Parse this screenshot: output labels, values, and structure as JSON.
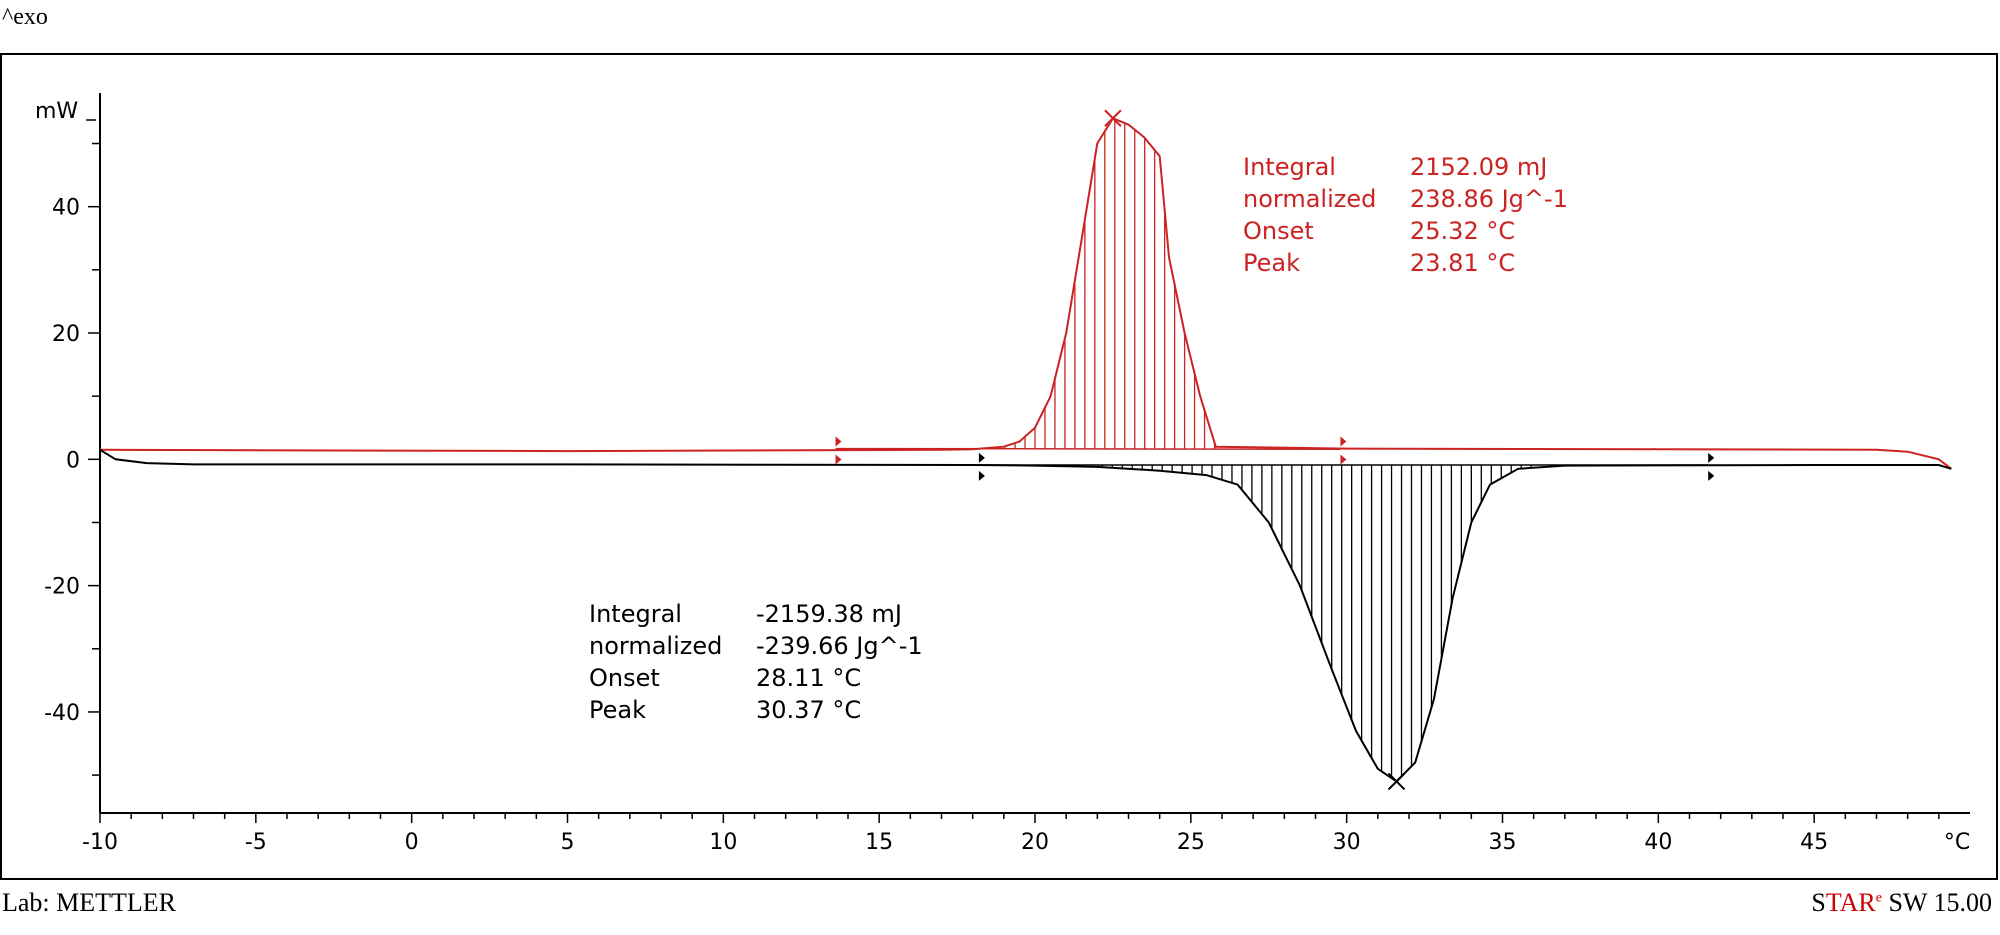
{
  "header": {
    "exo_label": "^exo"
  },
  "footer": {
    "lab": "Lab: METTLER",
    "software_s": "S",
    "software_tar": "TAR",
    "software_e": "e",
    "software_rest": " SW 15.00"
  },
  "colors": {
    "heating": "#cc2222",
    "cooling": "#000000",
    "axis": "#000000"
  },
  "chart_data": {
    "type": "line",
    "title": "",
    "xlabel": "°C",
    "ylabel": "mW",
    "xlim": [
      -10,
      50
    ],
    "ylim": [
      -56,
      58
    ],
    "x_ticks": [
      -10,
      -5,
      0,
      5,
      10,
      15,
      20,
      25,
      30,
      35,
      40,
      45
    ],
    "x_tick_labels": [
      "-10",
      "-5",
      "0",
      "5",
      "10",
      "15",
      "20",
      "25",
      "30",
      "35",
      "40",
      "45"
    ],
    "y_ticks": [
      40,
      20,
      0,
      -20,
      -40
    ],
    "y_tick_labels": [
      "40",
      "20",
      "0",
      "-20",
      "-40"
    ],
    "series": [
      {
        "color": "#cc2222",
        "points": [
          [
            -10,
            1.5
          ],
          [
            5,
            1.3
          ],
          [
            17,
            1.5
          ],
          [
            18,
            1.6
          ],
          [
            19,
            2
          ],
          [
            19.5,
            2.8
          ],
          [
            20,
            5
          ],
          [
            20.5,
            10
          ],
          [
            21,
            20
          ],
          [
            21.5,
            35
          ],
          [
            22,
            50
          ],
          [
            22.5,
            54
          ],
          [
            23,
            53
          ],
          [
            23.5,
            51
          ],
          [
            24,
            48
          ],
          [
            24.3,
            32
          ],
          [
            24.8,
            20
          ],
          [
            25.3,
            10
          ],
          [
            25.8,
            2
          ],
          [
            30,
            1.7
          ],
          [
            40,
            1.6
          ],
          [
            47,
            1.5
          ],
          [
            48,
            1.2
          ],
          [
            49,
            0
          ],
          [
            49.4,
            -1.5
          ]
        ]
      },
      {
        "color": "#000000",
        "points": [
          [
            -10,
            1.5
          ],
          [
            -9.5,
            0
          ],
          [
            -8.5,
            -0.6
          ],
          [
            -7,
            -0.8
          ],
          [
            5,
            -0.8
          ],
          [
            18,
            -0.9
          ],
          [
            20,
            -1
          ],
          [
            22,
            -1.2
          ],
          [
            24,
            -1.8
          ],
          [
            25.5,
            -2.5
          ],
          [
            26.5,
            -4
          ],
          [
            27.5,
            -10
          ],
          [
            28.5,
            -20
          ],
          [
            29.5,
            -33
          ],
          [
            30.3,
            -43
          ],
          [
            31,
            -49
          ],
          [
            31.6,
            -51
          ],
          [
            32.2,
            -48
          ],
          [
            32.8,
            -38
          ],
          [
            33.4,
            -22
          ],
          [
            34,
            -10
          ],
          [
            34.6,
            -4
          ],
          [
            35.5,
            -1.5
          ],
          [
            37,
            -1
          ],
          [
            45,
            -0.9
          ],
          [
            48,
            -0.9
          ],
          [
            49,
            -0.9
          ],
          [
            49.4,
            -1.5
          ]
        ]
      }
    ],
    "heating_peak": {
      "x_start": 18.2,
      "x_end": 25.8,
      "peak_x": 22.5,
      "peak_y": 54,
      "left_limit_x": 13.6,
      "right_limit_x": 29.8,
      "results": [
        {
          "label": "Integral",
          "value": "2152.09 mJ"
        },
        {
          "label": "  normalized",
          "value": "238.86 Jg^-1"
        },
        {
          "label": "Onset",
          "value": "25.32 °C"
        },
        {
          "label": "Peak",
          "value": "23.81 °C"
        }
      ]
    },
    "cooling_peak": {
      "x_start": 18.2,
      "x_end": 36,
      "peak_x": 31.6,
      "peak_y": -51,
      "left_limit_x": 18.2,
      "right_limit_x": 41.6,
      "results": [
        {
          "label": "Integral",
          "value": "-2159.38 mJ"
        },
        {
          "label": "  normalized",
          "value": "-239.66 Jg^-1"
        },
        {
          "label": "Onset",
          "value": "28.11 °C"
        },
        {
          "label": "Peak",
          "value": "30.37 °C"
        }
      ]
    }
  }
}
